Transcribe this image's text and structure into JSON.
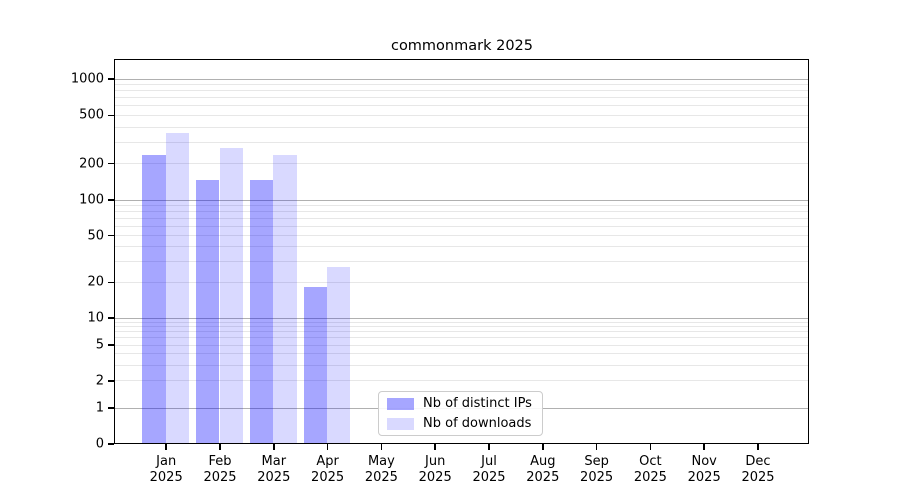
{
  "title": "commonmark 2025",
  "colors": {
    "distinct_ips_bar": "#a6a6ff",
    "downloads_bar": "#d9d9ff",
    "major_grid": "#b0b0b0",
    "minor_grid": "#e7e7e7",
    "axis": "#000000"
  },
  "legend": {
    "entries": [
      {
        "label": "Nb of distinct IPs",
        "color": "rgba(0,0,255,0.35)"
      },
      {
        "label": "Nb of downloads",
        "color": "rgba(0,0,255,0.15)"
      }
    ]
  },
  "chart_data": {
    "type": "bar",
    "title": "commonmark 2025",
    "categories": [
      "Jan 2025",
      "Feb 2025",
      "Mar 2025",
      "Apr 2025",
      "May 2025",
      "Jun 2025",
      "Jul 2025",
      "Aug 2025",
      "Sep 2025",
      "Oct 2025",
      "Nov 2025",
      "Dec 2025"
    ],
    "series": [
      {
        "name": "Nb of distinct IPs",
        "color": "rgba(0,0,255,0.35)",
        "values": [
          235,
          145,
          145,
          18,
          0,
          0,
          0,
          0,
          0,
          0,
          0,
          0
        ]
      },
      {
        "name": "Nb of downloads",
        "color": "rgba(0,0,255,0.15)",
        "values": [
          355,
          265,
          235,
          27,
          0,
          0,
          0,
          0,
          0,
          0,
          0,
          0
        ]
      }
    ],
    "xlabel": "",
    "ylabel": "",
    "yscale": "symlog",
    "yticks": [
      0,
      1,
      2,
      5,
      10,
      20,
      50,
      100,
      200,
      500,
      1000
    ],
    "ylim": [
      0,
      1400
    ],
    "grid": "horizontal major and minor",
    "legend_position": "bottom-center"
  }
}
